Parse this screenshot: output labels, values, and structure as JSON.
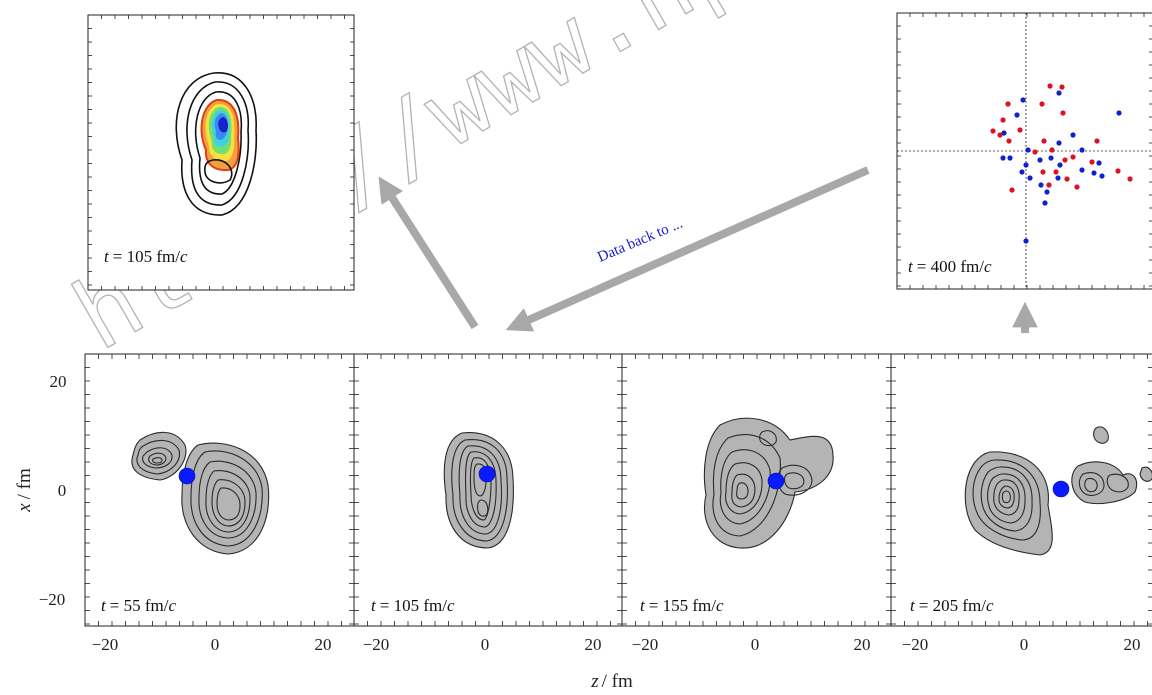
{
  "watermark": "http://www.npr.ac",
  "arrow_label": "Data back to ...",
  "axes": {
    "x_title_prefix": "z",
    "x_title_unit": "/ fm",
    "y_title_prefix": "x",
    "y_title_unit": "/ fm",
    "x_ticks": [
      "−20",
      "0",
      "20"
    ],
    "y_ticks": [
      "20",
      "0",
      "−20"
    ]
  },
  "panels": [
    {
      "t": "t",
      "value": "= 55 fm/",
      "unit_italic": "c"
    },
    {
      "t": "t",
      "value": "= 105 fm/",
      "unit_italic": "c"
    },
    {
      "t": "t",
      "value": "= 155 fm/",
      "unit_italic": "c"
    },
    {
      "t": "t",
      "value": "= 205 fm/",
      "unit_italic": "c"
    }
  ],
  "inset_left": {
    "t": "t",
    "value": "= 105 fm/",
    "unit_italic": "c"
  },
  "inset_right": {
    "t": "t",
    "value": "= 400 fm/",
    "unit_italic": "c"
  },
  "colors": {
    "contour_fill": "#b0b0b0",
    "contour_line": "#2a2a2a",
    "marker": "#0a1aff",
    "red_particle": "#e01020",
    "blue_particle": "#1020d0",
    "arrow": "#a8a8a8"
  }
}
